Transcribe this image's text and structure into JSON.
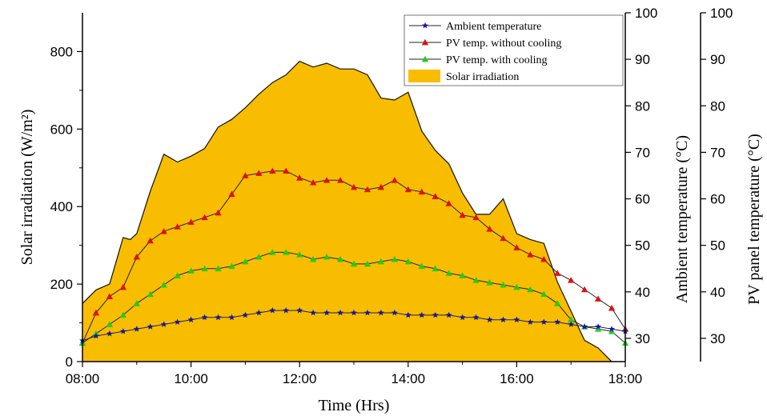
{
  "chart_data": {
    "type": "area",
    "xlabel": "Time (Hrs)",
    "x_ticks": [
      "08:00",
      "10:00",
      "12:00",
      "14:00",
      "16:00",
      "18:00"
    ],
    "xlim": [
      8,
      18
    ],
    "axes": {
      "left": {
        "label": "Solar irradiation (W/m²)",
        "ylim": [
          0,
          900
        ],
        "ticks": [
          0,
          200,
          400,
          600,
          800
        ]
      },
      "right1": {
        "label": "Ambient temperature (°C)",
        "ylim": [
          25,
          100
        ],
        "ticks": [
          30,
          40,
          50,
          60,
          70,
          80,
          90,
          100
        ]
      },
      "right2": {
        "label": "PV panel temperature (°C)",
        "ylim": [
          25,
          100
        ],
        "ticks": [
          30,
          40,
          50,
          60,
          70,
          80,
          90,
          100
        ]
      }
    },
    "legend": {
      "position": "top-right",
      "entries": [
        "Ambient temperature",
        "PV temp. without cooling",
        "PV temp. with cooling",
        "Solar irradiation"
      ]
    },
    "series": [
      {
        "name": "Solar irradiation",
        "axis": "left",
        "color": "#f9bd00",
        "points": [
          [
            8.0,
            150
          ],
          [
            8.25,
            185
          ],
          [
            8.5,
            200
          ],
          [
            8.75,
            320
          ],
          [
            8.88,
            315
          ],
          [
            9.0,
            330
          ],
          [
            9.25,
            440
          ],
          [
            9.5,
            535
          ],
          [
            9.75,
            515
          ],
          [
            10.0,
            530
          ],
          [
            10.25,
            550
          ],
          [
            10.5,
            605
          ],
          [
            10.75,
            625
          ],
          [
            11.0,
            655
          ],
          [
            11.25,
            690
          ],
          [
            11.5,
            720
          ],
          [
            11.75,
            740
          ],
          [
            12.0,
            775
          ],
          [
            12.25,
            760
          ],
          [
            12.5,
            770
          ],
          [
            12.75,
            755
          ],
          [
            13.0,
            755
          ],
          [
            13.25,
            740
          ],
          [
            13.5,
            680
          ],
          [
            13.75,
            675
          ],
          [
            14.0,
            695
          ],
          [
            14.25,
            595
          ],
          [
            14.5,
            545
          ],
          [
            14.75,
            510
          ],
          [
            15.0,
            435
          ],
          [
            15.25,
            380
          ],
          [
            15.5,
            380
          ],
          [
            15.75,
            420
          ],
          [
            16.0,
            330
          ],
          [
            16.25,
            315
          ],
          [
            16.5,
            305
          ],
          [
            16.75,
            205
          ],
          [
            17.0,
            130
          ],
          [
            17.25,
            55
          ],
          [
            17.5,
            35
          ],
          [
            17.75,
            0
          ]
        ]
      },
      {
        "name": "PV temp. without cooling",
        "axis": "right2",
        "color": "#e01010",
        "marker": "triangle",
        "points": [
          [
            8.0,
            29.0
          ],
          [
            8.25,
            35.5
          ],
          [
            8.5,
            39.0
          ],
          [
            8.75,
            41.0
          ],
          [
            9.0,
            47.5
          ],
          [
            9.25,
            51.0
          ],
          [
            9.5,
            53.0
          ],
          [
            9.75,
            54.0
          ],
          [
            10.0,
            55.0
          ],
          [
            10.25,
            56.0
          ],
          [
            10.5,
            57.0
          ],
          [
            10.75,
            61.0
          ],
          [
            11.0,
            65.0
          ],
          [
            11.25,
            65.5
          ],
          [
            11.5,
            66.0
          ],
          [
            11.75,
            66.0
          ],
          [
            12.0,
            64.5
          ],
          [
            12.25,
            63.5
          ],
          [
            12.5,
            64.0
          ],
          [
            12.75,
            64.0
          ],
          [
            13.0,
            62.5
          ],
          [
            13.25,
            62.0
          ],
          [
            13.5,
            62.5
          ],
          [
            13.75,
            64.0
          ],
          [
            14.0,
            62.0
          ],
          [
            14.25,
            61.5
          ],
          [
            14.5,
            60.5
          ],
          [
            14.75,
            59.0
          ],
          [
            15.0,
            56.5
          ],
          [
            15.25,
            56.0
          ],
          [
            15.5,
            53.5
          ],
          [
            15.75,
            51.5
          ],
          [
            16.0,
            49.5
          ],
          [
            16.25,
            48.0
          ],
          [
            16.5,
            47.0
          ],
          [
            16.75,
            44.0
          ],
          [
            17.0,
            42.5
          ],
          [
            17.25,
            40.5
          ],
          [
            17.5,
            38.5
          ],
          [
            17.75,
            36.5
          ],
          [
            18.0,
            32.0
          ]
        ]
      },
      {
        "name": "PV temp. with cooling",
        "axis": "right2",
        "color": "#22cc22",
        "marker": "triangle",
        "points": [
          [
            8.0,
            29.0
          ],
          [
            8.25,
            31.0
          ],
          [
            8.5,
            33.0
          ],
          [
            8.75,
            35.0
          ],
          [
            9.0,
            37.5
          ],
          [
            9.25,
            39.5
          ],
          [
            9.5,
            41.5
          ],
          [
            9.75,
            43.5
          ],
          [
            10.0,
            44.5
          ],
          [
            10.25,
            45.0
          ],
          [
            10.5,
            45.0
          ],
          [
            10.75,
            45.5
          ],
          [
            11.0,
            46.5
          ],
          [
            11.25,
            47.5
          ],
          [
            11.5,
            48.5
          ],
          [
            11.75,
            48.5
          ],
          [
            12.0,
            48.0
          ],
          [
            12.25,
            47.0
          ],
          [
            12.5,
            47.5
          ],
          [
            12.75,
            47.0
          ],
          [
            13.0,
            46.0
          ],
          [
            13.25,
            46.0
          ],
          [
            13.5,
            46.5
          ],
          [
            13.75,
            47.0
          ],
          [
            14.0,
            46.5
          ],
          [
            14.25,
            45.5
          ],
          [
            14.5,
            45.0
          ],
          [
            14.75,
            44.0
          ],
          [
            15.0,
            43.5
          ],
          [
            15.25,
            42.5
          ],
          [
            15.5,
            42.0
          ],
          [
            15.75,
            41.5
          ],
          [
            16.0,
            41.0
          ],
          [
            16.25,
            40.5
          ],
          [
            16.5,
            39.5
          ],
          [
            16.75,
            37.5
          ],
          [
            17.0,
            34.0
          ],
          [
            17.25,
            32.5
          ],
          [
            17.5,
            32.0
          ],
          [
            17.75,
            31.5
          ],
          [
            18.0,
            29.0
          ]
        ]
      },
      {
        "name": "Ambient temperature",
        "axis": "right1",
        "color": "#1515b0",
        "marker": "star",
        "points": [
          [
            8.0,
            29.5
          ],
          [
            8.25,
            30.5
          ],
          [
            8.5,
            31.0
          ],
          [
            8.75,
            31.5
          ],
          [
            9.0,
            32.0
          ],
          [
            9.25,
            32.5
          ],
          [
            9.5,
            33.0
          ],
          [
            9.75,
            33.5
          ],
          [
            10.0,
            34.0
          ],
          [
            10.25,
            34.5
          ],
          [
            10.5,
            34.5
          ],
          [
            10.75,
            34.5
          ],
          [
            11.0,
            35.0
          ],
          [
            11.25,
            35.5
          ],
          [
            11.5,
            36.0
          ],
          [
            11.75,
            36.0
          ],
          [
            12.0,
            36.0
          ],
          [
            12.25,
            35.5
          ],
          [
            12.5,
            35.5
          ],
          [
            12.75,
            35.5
          ],
          [
            13.0,
            35.5
          ],
          [
            13.25,
            35.5
          ],
          [
            13.5,
            35.5
          ],
          [
            13.75,
            35.5
          ],
          [
            14.0,
            35.0
          ],
          [
            14.25,
            35.0
          ],
          [
            14.5,
            35.0
          ],
          [
            14.75,
            35.0
          ],
          [
            15.0,
            34.5
          ],
          [
            15.25,
            34.5
          ],
          [
            15.5,
            34.0
          ],
          [
            15.75,
            34.0
          ],
          [
            16.0,
            34.0
          ],
          [
            16.25,
            33.5
          ],
          [
            16.5,
            33.5
          ],
          [
            16.75,
            33.5
          ],
          [
            17.0,
            33.0
          ],
          [
            17.25,
            32.5
          ],
          [
            17.5,
            32.5
          ],
          [
            17.75,
            32.0
          ],
          [
            18.0,
            31.5
          ]
        ]
      }
    ]
  }
}
